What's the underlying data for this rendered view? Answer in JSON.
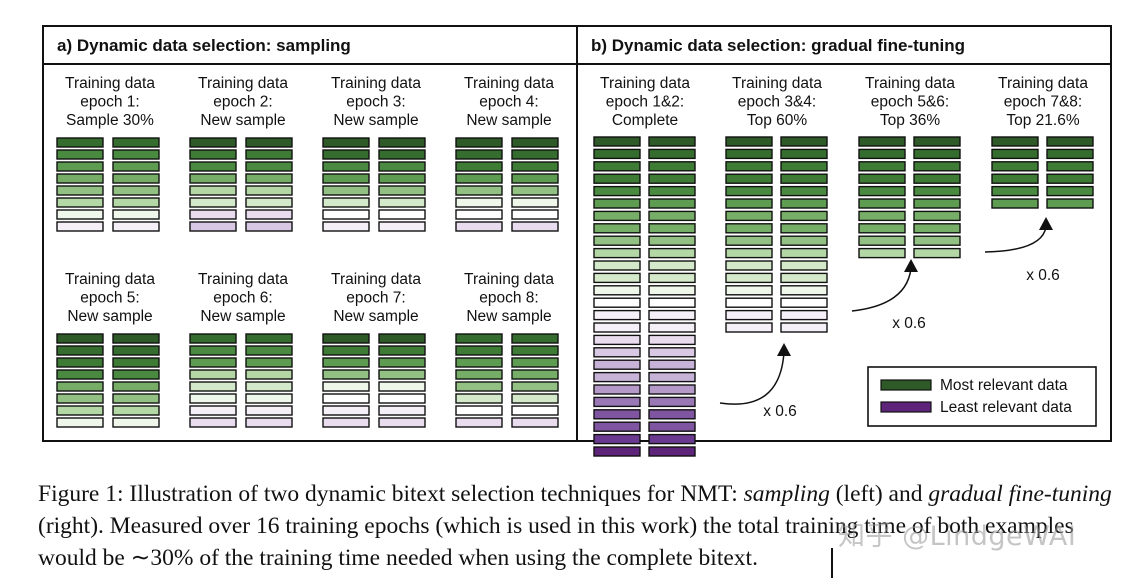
{
  "panel_a": {
    "title": "a) Dynamic data selection: sampling",
    "epochs": [
      {
        "lines": [
          "Training data",
          "epoch 1:",
          "Sample 30%"
        ],
        "bars": [
          1,
          3,
          4,
          5,
          6,
          7,
          9,
          11
        ]
      },
      {
        "lines": [
          "Training data",
          "epoch 2:",
          "New sample"
        ],
        "bars": [
          0,
          2,
          3,
          5,
          7,
          8,
          12,
          13
        ]
      },
      {
        "lines": [
          "Training data",
          "epoch 3:",
          "New sample"
        ],
        "bars": [
          0,
          1,
          3,
          4,
          6,
          8,
          10,
          11
        ]
      },
      {
        "lines": [
          "Training data",
          "epoch 4:",
          "New sample"
        ],
        "bars": [
          0,
          1,
          2,
          4,
          6,
          9,
          10,
          12
        ]
      },
      {
        "lines": [
          "Training data",
          "epoch 5:",
          "New sample"
        ],
        "bars": [
          0,
          1,
          2,
          3,
          5,
          6,
          7,
          9
        ]
      },
      {
        "lines": [
          "Training data",
          "epoch 6:",
          "New sample"
        ],
        "bars": [
          1,
          3,
          4,
          7,
          8,
          9,
          11,
          12
        ]
      },
      {
        "lines": [
          "Training data",
          "epoch 7:",
          "New sample"
        ],
        "bars": [
          0,
          2,
          4,
          6,
          9,
          10,
          11,
          12
        ]
      },
      {
        "lines": [
          "Training data",
          "epoch 8:",
          "New sample"
        ],
        "bars": [
          1,
          2,
          4,
          5,
          6,
          8,
          10,
          12
        ]
      }
    ]
  },
  "panel_b": {
    "title": "b) Dynamic data selection: gradual fine-tuning",
    "groups": [
      {
        "lines": [
          "Training data",
          "epoch 1&2:",
          "Complete"
        ],
        "bar_count": 26
      },
      {
        "lines": [
          "Training data",
          "epoch 3&4:",
          "Top 60%"
        ],
        "bar_count": 16
      },
      {
        "lines": [
          "Training data",
          "epoch 5&6:",
          "Top 36%"
        ],
        "bar_count": 10
      },
      {
        "lines": [
          "Training data",
          "epoch 7&8:",
          "Top 21.6%"
        ],
        "bar_count": 6
      }
    ],
    "arrow_labels": [
      "x 0.6",
      "x 0.6",
      "x 0.6"
    ]
  },
  "legend": {
    "items": [
      {
        "label": "Most relevant data",
        "color": "#2d5a27"
      },
      {
        "label": "Least relevant data",
        "color": "#5e2479"
      }
    ]
  },
  "palette": [
    "#2d5a27",
    "#346d2d",
    "#3e7c35",
    "#4a8a40",
    "#5d9c51",
    "#76ae68",
    "#92c183",
    "#b4d7a6",
    "#d3e9c9",
    "#eef7e9",
    "#ffffff",
    "#f5eff7",
    "#e8dcee",
    "#d9c8e3",
    "#c7b3d8",
    "#b499c9",
    "#9a78b5",
    "#7f54a0",
    "#6a3a90",
    "#5e2479"
  ],
  "caption": {
    "p1": "Figure 1: Illustration of two dynamic bitext selection techniques for NMT: ",
    "i1": "sampling",
    "p2": " (left) and ",
    "i2": "gradual fine-tuning",
    "p3": " (right). Measured over 16 training epochs (which is used in this work) the total training time of both examples would be ∼30% of the training time needed when using the complete bitext."
  },
  "watermark": "知乎 @LindgeWAI"
}
